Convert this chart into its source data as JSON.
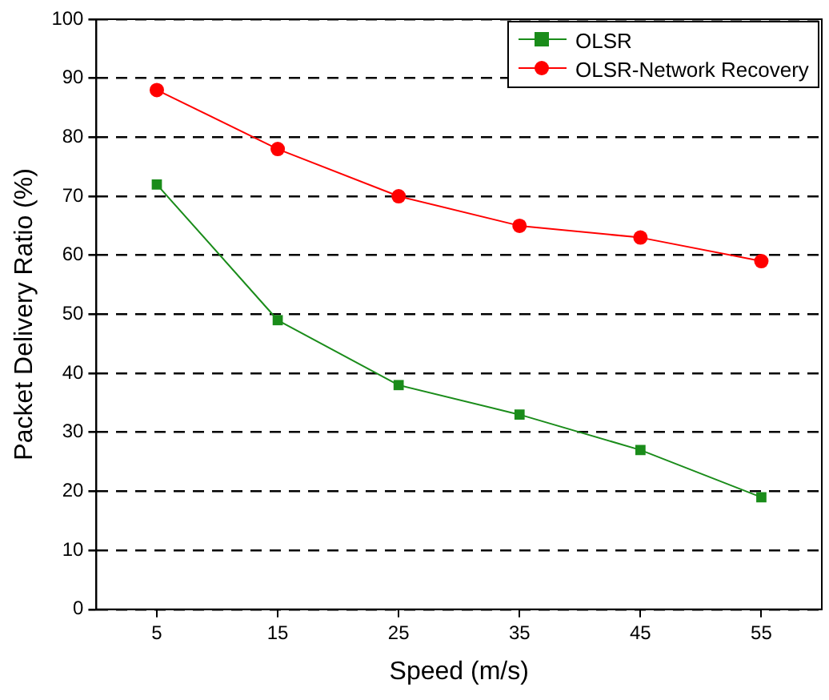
{
  "chart_data": {
    "type": "line",
    "xlabel": "Speed (m/s)",
    "ylabel": "Packet Delivery Ratio (%)",
    "x": [
      5,
      15,
      25,
      35,
      45,
      55
    ],
    "series": [
      {
        "name": "OLSR",
        "color": "#1a8c1a",
        "marker": "square",
        "values": [
          72,
          49,
          38,
          33,
          27,
          19
        ]
      },
      {
        "name": "OLSR-Network Recovery",
        "color": "#ff0000",
        "marker": "circle",
        "values": [
          88,
          78,
          70,
          65,
          63,
          59
        ]
      }
    ],
    "xlim": [
      0,
      60
    ],
    "xticks": [
      5,
      15,
      25,
      35,
      45,
      55
    ],
    "ylim": [
      0,
      100
    ],
    "yticks": [
      0,
      10,
      20,
      30,
      40,
      50,
      60,
      70,
      80,
      90,
      100
    ],
    "grid": "y",
    "legend": "top right",
    "line_style": "solid"
  }
}
